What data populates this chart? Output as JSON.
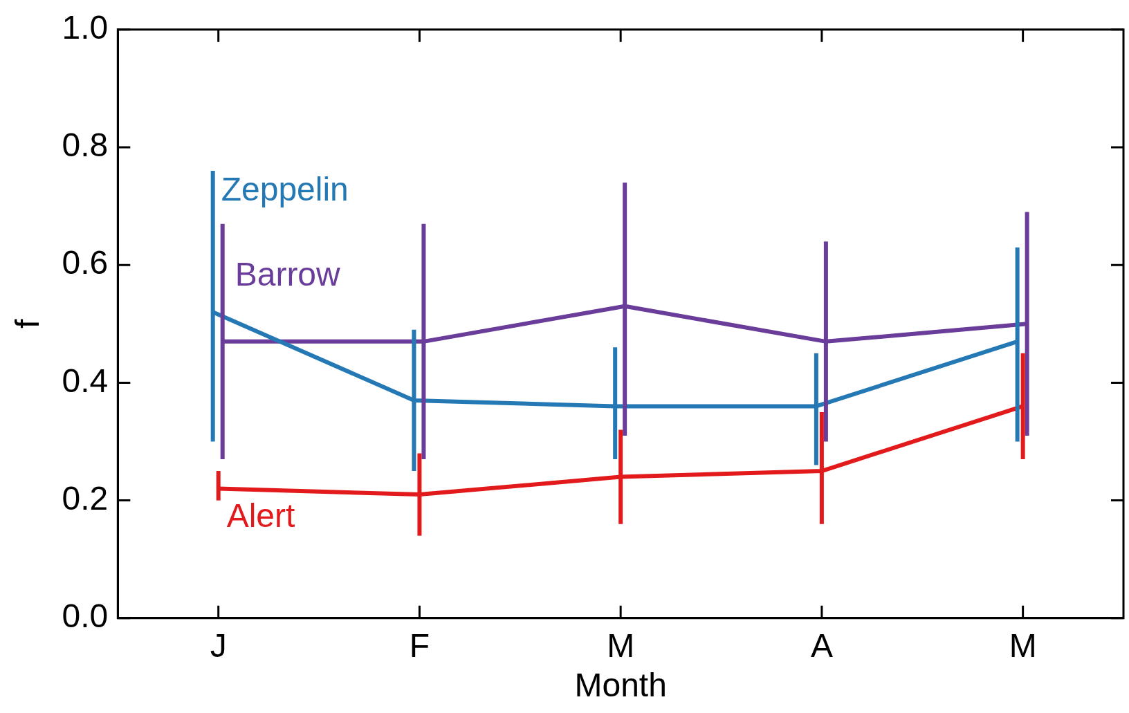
{
  "chart_data": {
    "type": "line",
    "xlabel": "Month",
    "ylabel": "f",
    "categories": [
      "J",
      "F",
      "M",
      "A",
      "M"
    ],
    "ylim": [
      0,
      1
    ],
    "yticks": [
      {
        "value": 0,
        "label": "0.0"
      },
      {
        "value": 0.2,
        "label": "0.2"
      },
      {
        "value": 0.4,
        "label": "0.4"
      },
      {
        "value": 0.6,
        "label": "0.6"
      },
      {
        "value": 0.8,
        "label": "0.8"
      },
      {
        "value": 1,
        "label": "1.0"
      }
    ],
    "grid": false,
    "legend": false,
    "marker": "none",
    "line_style": "solid",
    "series": [
      {
        "name": "Zeppelin",
        "color": "#2479b5",
        "values": [
          0.52,
          0.37,
          0.36,
          0.36,
          0.47
        ],
        "errors": [
          [
            0.3,
            0.76
          ],
          [
            0.25,
            0.49
          ],
          [
            0.27,
            0.46
          ],
          [
            0.26,
            0.45
          ],
          [
            0.3,
            0.63
          ]
        ]
      },
      {
        "name": "Barrow",
        "color": "#6a3d9a",
        "values": [
          0.47,
          0.47,
          0.53,
          0.47,
          0.5
        ],
        "errors": [
          [
            0.27,
            0.67
          ],
          [
            0.27,
            0.67
          ],
          [
            0.31,
            0.74
          ],
          [
            0.3,
            0.64
          ],
          [
            0.31,
            0.69
          ]
        ]
      },
      {
        "name": "Alert",
        "color": "#e31a1c",
        "values": [
          0.22,
          0.21,
          0.24,
          0.25,
          0.36
        ],
        "errors": [
          [
            0.2,
            0.25
          ],
          [
            0.14,
            0.28
          ],
          [
            0.16,
            0.32
          ],
          [
            0.16,
            0.35
          ],
          [
            0.27,
            0.45
          ]
        ]
      }
    ]
  }
}
